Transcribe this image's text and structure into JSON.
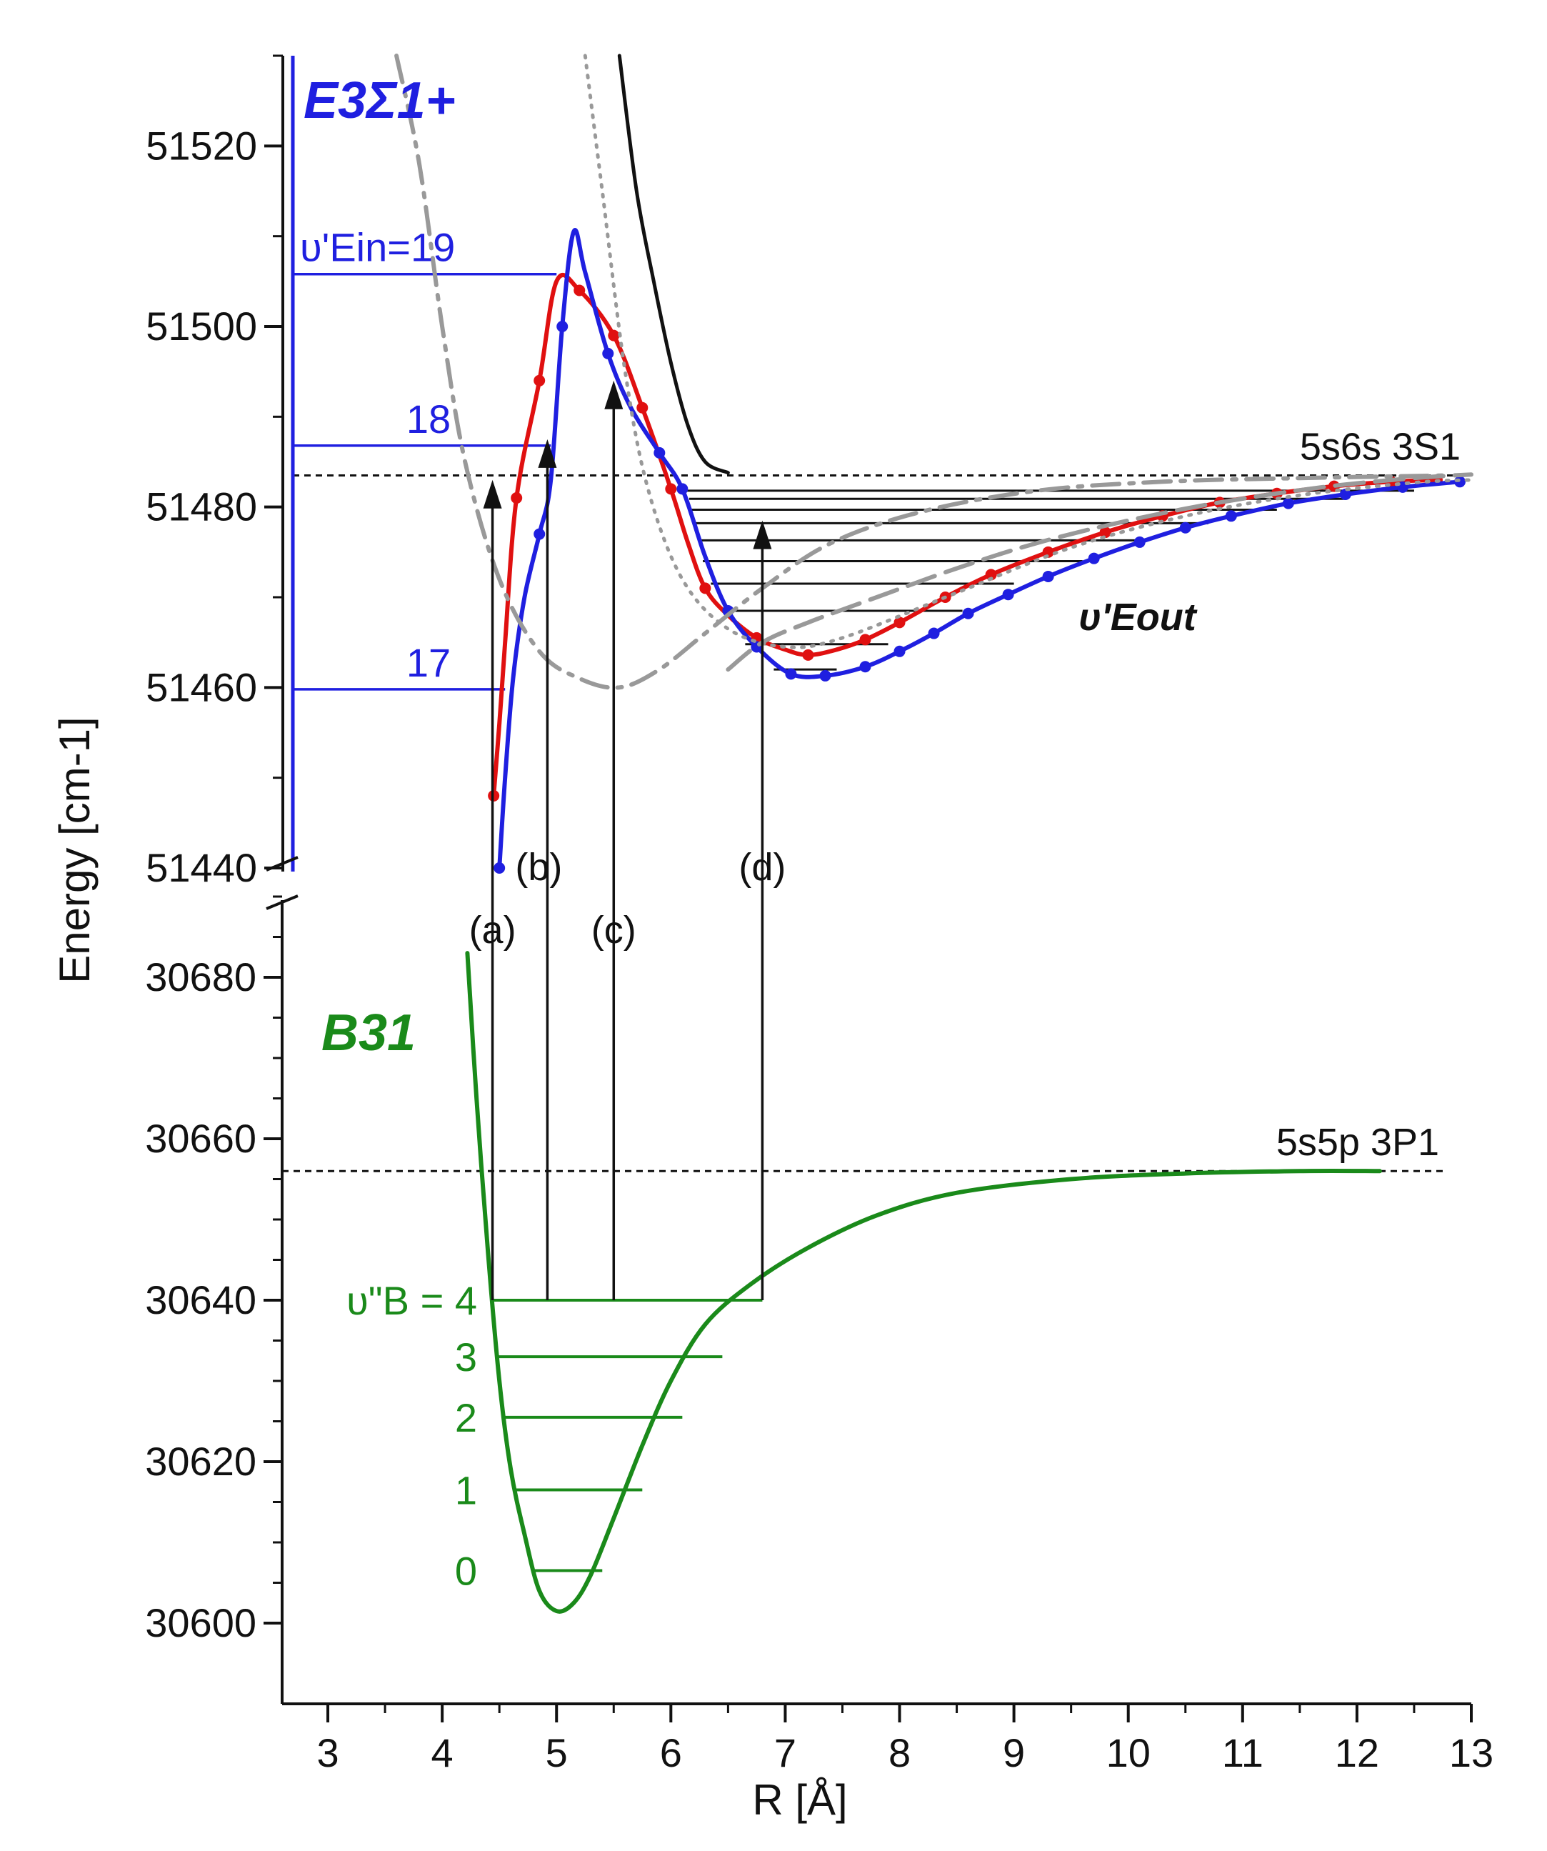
{
  "chart_data": {
    "type": "line",
    "xlabel": "R [Å]",
    "ylabel": "Energy [cm-1]",
    "xlim": [
      2.6,
      13
    ],
    "x_ticks": [
      "3",
      "4",
      "5",
      "6",
      "7",
      "8",
      "9",
      "10",
      "11",
      "12",
      "13"
    ],
    "upper_panel": {
      "ylim": [
        51440,
        51530
      ],
      "y_ticks": [
        "51440",
        "51460",
        "51480",
        "51500",
        "51520"
      ],
      "state_label": "E3Σ1+",
      "asymptote_label": "5s6s 3S1",
      "asymptote_energy": 51483.5,
      "inner_levels": [
        {
          "label": "17",
          "energy": 51459.8,
          "r_outer": 4.55
        },
        {
          "label": "18",
          "energy": 51486.8,
          "r_outer": 4.95
        },
        {
          "label": "υ'Ein=19",
          "energy": 51505.8,
          "r_outer": 5.0
        }
      ],
      "outer_levels_label": "υ'Eout",
      "outer_levels": [
        {
          "energy": 51462.0,
          "r_in": 6.9,
          "r_out": 7.45
        },
        {
          "energy": 51464.8,
          "r_in": 6.65,
          "r_out": 7.9
        },
        {
          "energy": 51468.5,
          "r_in": 6.45,
          "r_out": 8.55
        },
        {
          "energy": 51471.5,
          "r_in": 6.35,
          "r_out": 9.0
        },
        {
          "energy": 51474.0,
          "r_in": 6.28,
          "r_out": 9.6
        },
        {
          "energy": 51476.3,
          "r_in": 6.24,
          "r_out": 10.1
        },
        {
          "energy": 51478.2,
          "r_in": 6.2,
          "r_out": 10.7
        },
        {
          "energy": 51479.7,
          "r_in": 6.18,
          "r_out": 11.3
        },
        {
          "energy": 51480.9,
          "r_in": 6.16,
          "r_out": 11.9
        },
        {
          "energy": 51481.8,
          "r_in": 6.14,
          "r_out": 12.5
        }
      ],
      "series": [
        {
          "color": "#e01010",
          "markers": true,
          "points": [
            [
              4.45,
              51448
            ],
            [
              4.5,
              51456
            ],
            [
              4.55,
              51465
            ],
            [
              4.65,
              51481
            ],
            [
              4.85,
              51494
            ],
            [
              5.0,
              51505
            ],
            [
              5.2,
              51504
            ],
            [
              5.5,
              51499
            ],
            [
              5.75,
              51491
            ],
            [
              6.0,
              51482
            ],
            [
              6.15,
              51476
            ],
            [
              6.3,
              51471
            ],
            [
              6.5,
              51468
            ],
            [
              6.75,
              51465.5
            ],
            [
              7.0,
              51464.2
            ],
            [
              7.2,
              51463.6
            ],
            [
              7.45,
              51464.2
            ],
            [
              7.7,
              51465.3
            ],
            [
              8.0,
              51467.2
            ],
            [
              8.4,
              51470.0
            ],
            [
              8.8,
              51472.5
            ],
            [
              9.3,
              51475.0
            ],
            [
              9.8,
              51477.2
            ],
            [
              10.3,
              51479.0
            ],
            [
              10.8,
              51480.5
            ],
            [
              11.3,
              51481.5
            ],
            [
              11.8,
              51482.3
            ],
            [
              12.3,
              51482.8
            ],
            [
              12.7,
              51483.0
            ]
          ],
          "marker_x": [
            4.45,
            4.65,
            4.85,
            5.2,
            5.5,
            5.75,
            6.0,
            6.3,
            6.75,
            7.2,
            7.7,
            8.0,
            8.4,
            8.8,
            9.3,
            9.8,
            10.3,
            10.8,
            11.3,
            11.8,
            12.3,
            12.7
          ]
        },
        {
          "color": "#1f1fe0",
          "markers": true,
          "points": [
            [
              4.5,
              51440
            ],
            [
              4.55,
              51450
            ],
            [
              4.62,
              51461
            ],
            [
              4.72,
              51470
            ],
            [
              4.85,
              51477
            ],
            [
              4.95,
              51483
            ],
            [
              5.05,
              51500
            ],
            [
              5.15,
              51510.5
            ],
            [
              5.25,
              51506
            ],
            [
              5.45,
              51497
            ],
            [
              5.65,
              51491
            ],
            [
              5.9,
              51486
            ],
            [
              6.1,
              51482
            ],
            [
              6.3,
              51474.5
            ],
            [
              6.5,
              51468.5
            ],
            [
              6.75,
              51464.5
            ],
            [
              7.05,
              51461.5
            ],
            [
              7.35,
              51461.3
            ],
            [
              7.7,
              51462.3
            ],
            [
              8.0,
              51464.0
            ],
            [
              8.3,
              51466.0
            ],
            [
              8.6,
              51468.2
            ],
            [
              8.95,
              51470.3
            ],
            [
              9.3,
              51472.3
            ],
            [
              9.7,
              51474.3
            ],
            [
              10.1,
              51476.1
            ],
            [
              10.5,
              51477.7
            ],
            [
              10.9,
              51479.0
            ],
            [
              11.4,
              51480.4
            ],
            [
              11.9,
              51481.4
            ],
            [
              12.4,
              51482.2
            ],
            [
              12.9,
              51482.8
            ]
          ],
          "marker_x": [
            4.5,
            4.85,
            5.05,
            5.45,
            5.9,
            6.1,
            6.5,
            6.75,
            7.05,
            7.35,
            7.7,
            8.0,
            8.3,
            8.6,
            8.95,
            9.3,
            9.7,
            10.1,
            10.5,
            10.9,
            11.4,
            11.9,
            12.4,
            12.9
          ]
        },
        {
          "color": "#111111",
          "markers": false,
          "dash": "",
          "points": [
            [
              5.55,
              51530
            ],
            [
              5.7,
              51515
            ],
            [
              5.85,
              51505
            ],
            [
              6.0,
              51496
            ],
            [
              6.15,
              51489
            ],
            [
              6.3,
              51485
            ],
            [
              6.5,
              51483.8
            ]
          ]
        },
        {
          "color": "#999999",
          "markers": false,
          "dash": "dots",
          "points": [
            [
              5.25,
              51530
            ],
            [
              5.4,
              51515
            ],
            [
              5.6,
              51495
            ],
            [
              5.8,
              51482
            ],
            [
              6.1,
              51472
            ],
            [
              6.5,
              51466.5
            ],
            [
              7.0,
              51464.5
            ],
            [
              7.5,
              51465.5
            ],
            [
              8.5,
              51470.5
            ],
            [
              9.5,
              51475.5
            ],
            [
              10.5,
              51479
            ],
            [
              11.5,
              51481.3
            ],
            [
              12.5,
              51482.7
            ],
            [
              13.0,
              51483.0
            ]
          ]
        },
        {
          "color": "#999999",
          "markers": false,
          "dash": "dashdot",
          "points": [
            [
              3.6,
              51530
            ],
            [
              3.8,
              51518
            ],
            [
              4.0,
              51500
            ],
            [
              4.2,
              51485
            ],
            [
              4.5,
              51472
            ],
            [
              4.85,
              51464
            ],
            [
              5.2,
              51461
            ],
            [
              5.55,
              51460
            ],
            [
              5.9,
              51462
            ],
            [
              6.3,
              51466
            ],
            [
              6.8,
              51471
            ],
            [
              7.4,
              51476
            ],
            [
              8.2,
              51479.5
            ],
            [
              9.2,
              51481.8
            ],
            [
              10.3,
              51482.8
            ],
            [
              11.5,
              51483.2
            ],
            [
              12.8,
              51483.5
            ]
          ]
        },
        {
          "color": "#999999",
          "markers": false,
          "dash": "dash",
          "points": [
            [
              6.5,
              51462
            ],
            [
              6.8,
              51465
            ],
            [
              7.2,
              51467.2
            ],
            [
              7.8,
              51470
            ],
            [
              8.5,
              51473.2
            ],
            [
              9.2,
              51476
            ],
            [
              10.0,
              51478.5
            ],
            [
              10.8,
              51480.5
            ],
            [
              11.7,
              51482.2
            ],
            [
              12.5,
              51483.2
            ],
            [
              13.0,
              51483.6
            ]
          ]
        }
      ]
    },
    "lower_panel": {
      "ylim": [
        30590,
        30690
      ],
      "y_ticks": [
        "30600",
        "30620",
        "30640",
        "30660",
        "30680"
      ],
      "state_label": "B31",
      "asymptote_label": "5s5p 3P1",
      "asymptote_energy": 30656,
      "curve": {
        "color": "#1a8a1a",
        "points": [
          [
            4.22,
            30683
          ],
          [
            4.3,
            30665
          ],
          [
            4.4,
            30646
          ],
          [
            4.5,
            30630
          ],
          [
            4.6,
            30619
          ],
          [
            4.72,
            30611
          ],
          [
            4.85,
            30604
          ],
          [
            5.0,
            30601.5
          ],
          [
            5.15,
            30602.5
          ],
          [
            5.3,
            30606
          ],
          [
            5.5,
            30613
          ],
          [
            5.75,
            30622
          ],
          [
            6.0,
            30630
          ],
          [
            6.3,
            30637
          ],
          [
            6.7,
            30642
          ],
          [
            7.2,
            30646.5
          ],
          [
            7.8,
            30650.5
          ],
          [
            8.5,
            30653.3
          ],
          [
            9.5,
            30655.0
          ],
          [
            10.5,
            30655.7
          ],
          [
            11.5,
            30656.0
          ],
          [
            12.2,
            30656.0
          ]
        ]
      },
      "levels": [
        {
          "label": "0",
          "energy": 30606.5,
          "r_in": 4.78,
          "r_out": 5.4
        },
        {
          "label": "1",
          "energy": 30616.5,
          "r_in": 4.62,
          "r_out": 5.75
        },
        {
          "label": "2",
          "energy": 30625.5,
          "r_in": 4.53,
          "r_out": 6.1
        },
        {
          "label": "3",
          "energy": 30633,
          "r_in": 4.48,
          "r_out": 6.45
        },
        {
          "label": "υ\"B = 4",
          "energy": 30640,
          "r_in": 4.44,
          "r_out": 6.8
        }
      ]
    },
    "transitions": [
      {
        "label": "(a)",
        "r": 4.44,
        "to_energy": 51483
      },
      {
        "label": "(b)",
        "r": 4.92,
        "to_energy": 51487.5
      },
      {
        "label": "(c)",
        "r": 5.5,
        "to_energy": 51494
      },
      {
        "label": "(d)",
        "r": 6.8,
        "to_energy": 51478.5
      }
    ],
    "grid": false,
    "legend": "none"
  }
}
